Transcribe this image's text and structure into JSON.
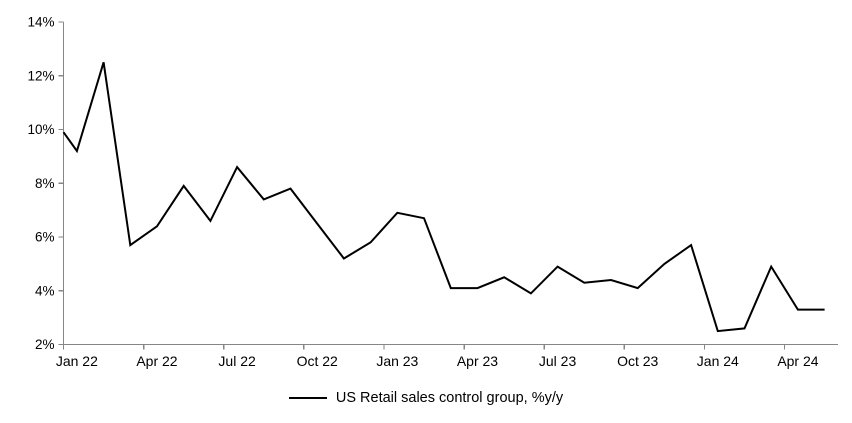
{
  "legend": {
    "label": "US Retail sales control group, %y/y"
  },
  "chart_data": {
    "type": "line",
    "title": "",
    "xlabel": "",
    "ylabel": "",
    "series_name": "US Retail sales control group, %y/y",
    "categories": [
      "Jan 22",
      "Feb 22",
      "Mar 22",
      "Apr 22",
      "May 22",
      "Jun 22",
      "Jul 22",
      "Aug 22",
      "Sep 22",
      "Oct 22",
      "Nov 22",
      "Dec 22",
      "Jan 23",
      "Feb 23",
      "Mar 23",
      "Apr 23",
      "May 23",
      "Jun 23",
      "Jul 23",
      "Aug 23",
      "Sep 23",
      "Oct 23",
      "Nov 23",
      "Dec 23",
      "Jan 24",
      "Feb 24",
      "Mar 24",
      "Apr 24",
      "May 24"
    ],
    "values": [
      9.2,
      12.5,
      5.7,
      6.4,
      7.9,
      6.6,
      8.6,
      7.4,
      7.8,
      6.5,
      5.2,
      5.8,
      6.9,
      6.7,
      4.1,
      4.1,
      4.5,
      3.9,
      4.9,
      4.3,
      4.4,
      4.1,
      5.0,
      5.7,
      2.5,
      2.6,
      4.9,
      3.3,
      3.3
    ],
    "axis_entry_value": 9.9,
    "ylim": [
      2,
      14
    ],
    "ytick_values": [
      2,
      4,
      6,
      8,
      10,
      12,
      14
    ],
    "ytick_labels": [
      "2%",
      "4%",
      "6%",
      "8%",
      "10%",
      "12%",
      "14%"
    ],
    "xtick_labels": [
      "Jan 22",
      "Apr 22",
      "Jul 22",
      "Oct 22",
      "Jan 23",
      "Apr 23",
      "Jul 23",
      "Oct 23",
      "Jan 24",
      "Apr 24"
    ],
    "xtick_every_months": 3,
    "grid": false,
    "legend_position": "bottom-center",
    "line_color": "#000000",
    "axis_color": "#868686",
    "label_color": "#000000"
  }
}
